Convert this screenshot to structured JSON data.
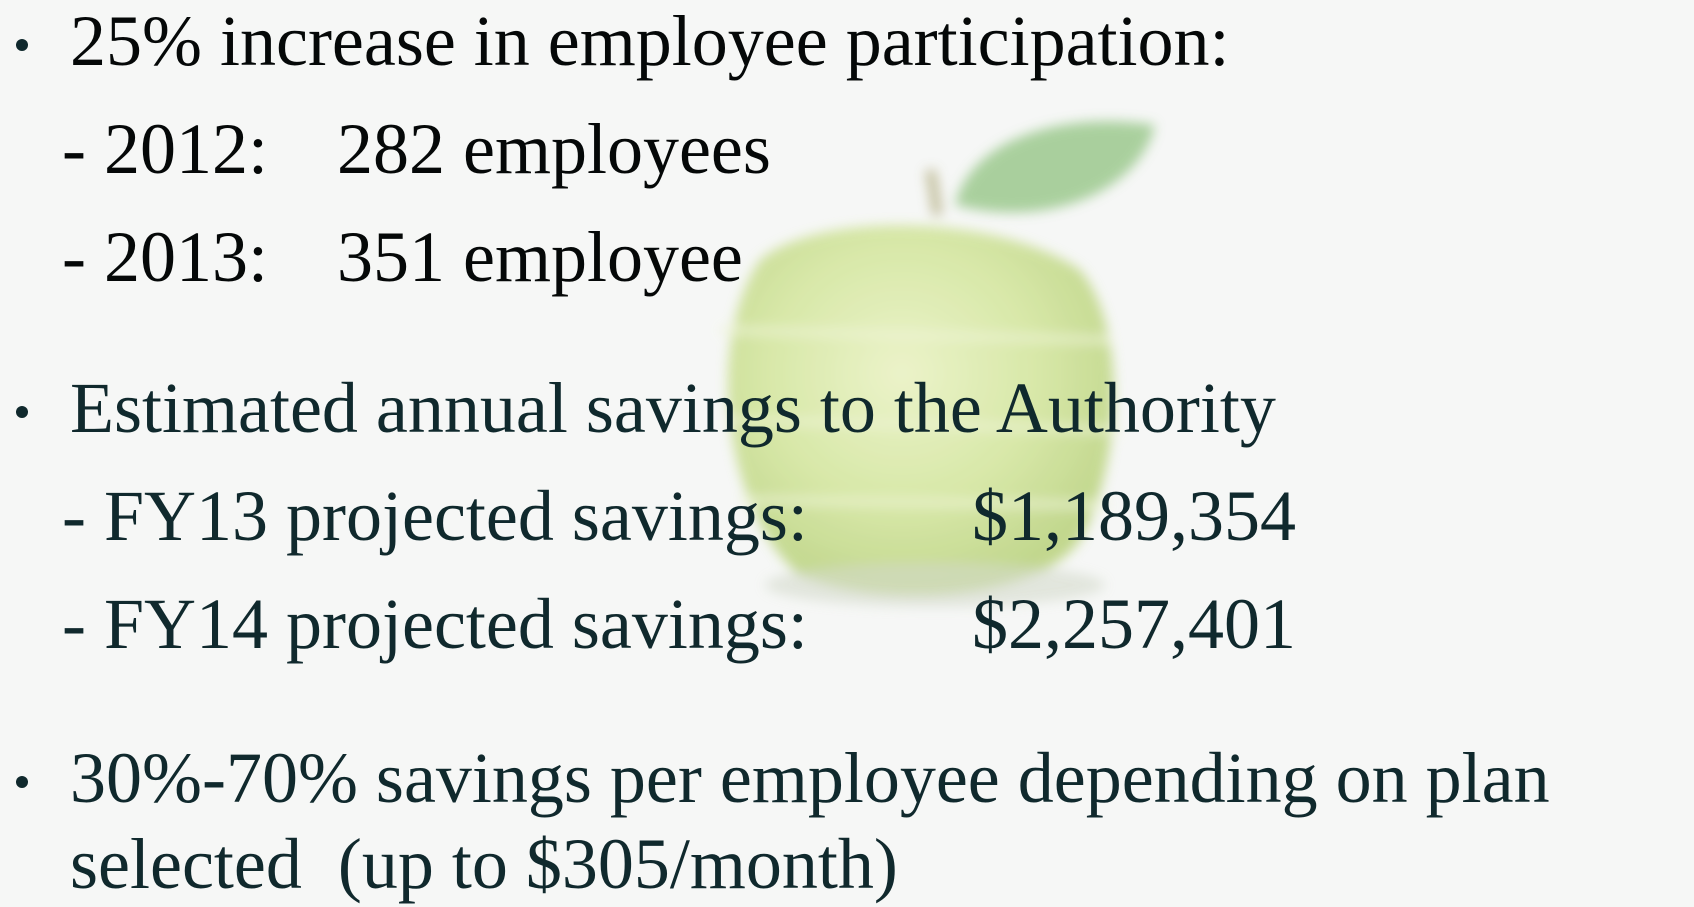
{
  "bullets": [
    {
      "text": "25% increase in employee participation:",
      "items": [
        {
          "label": "- 2012:",
          "value": "282 employees"
        },
        {
          "label": "- 2013:",
          "value": "351 employee"
        }
      ]
    },
    {
      "text": "Estimated annual savings to the Authority",
      "items": [
        {
          "label": "- FY13 projected savings:",
          "value": "$1,189,354"
        },
        {
          "label": "- FY14 projected savings:",
          "value": "$2,257,401"
        }
      ]
    },
    {
      "lines": [
        "30%-70% savings per employee depending on plan",
        "selected  (up to $305/month)"
      ]
    }
  ]
}
